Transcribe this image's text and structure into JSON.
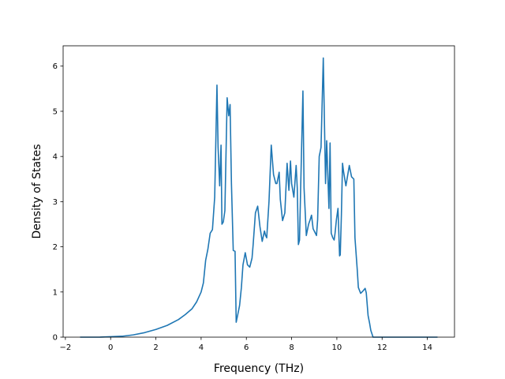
{
  "chart_data": {
    "type": "line",
    "title": "",
    "xlabel": "Frequency (THz)",
    "ylabel": "Density of States",
    "xlim": [
      -2.1,
      15.2
    ],
    "ylim": [
      0,
      6.45
    ],
    "x_ticks": [
      -2,
      0,
      2,
      4,
      6,
      8,
      10,
      12,
      14
    ],
    "x_tick_labels": [
      "−2",
      "0",
      "2",
      "4",
      "6",
      "8",
      "10",
      "12",
      "14"
    ],
    "y_ticks": [
      0,
      1,
      2,
      3,
      4,
      5,
      6
    ],
    "y_tick_labels": [
      "0",
      "1",
      "2",
      "3",
      "4",
      "5",
      "6"
    ],
    "grid": false,
    "legend": "none",
    "series": [
      {
        "color": "#1f77b4",
        "x": [
          -1.35,
          -0.5,
          0.0,
          0.5,
          1.0,
          1.5,
          2.0,
          2.5,
          3.0,
          3.3,
          3.6,
          3.8,
          4.0,
          4.1,
          4.2,
          4.3,
          4.4,
          4.5,
          4.6,
          4.7,
          4.75,
          4.82,
          4.88,
          4.92,
          4.98,
          5.05,
          5.15,
          5.22,
          5.28,
          5.34,
          5.42,
          5.5,
          5.55,
          5.62,
          5.7,
          5.78,
          5.85,
          5.95,
          6.05,
          6.15,
          6.25,
          6.3,
          6.4,
          6.5,
          6.6,
          6.7,
          6.8,
          6.85,
          6.9,
          7.0,
          7.1,
          7.2,
          7.3,
          7.35,
          7.45,
          7.5,
          7.6,
          7.7,
          7.8,
          7.88,
          7.95,
          8.0,
          8.1,
          8.2,
          8.25,
          8.3,
          8.35,
          8.4,
          8.5,
          8.55,
          8.65,
          8.75,
          8.82,
          8.88,
          8.95,
          9.05,
          9.1,
          9.15,
          9.22,
          9.3,
          9.4,
          9.5,
          9.55,
          9.65,
          9.7,
          9.75,
          9.82,
          9.88,
          9.92,
          9.98,
          10.05,
          10.12,
          10.15,
          10.2,
          10.25,
          10.3,
          10.4,
          10.55,
          10.65,
          10.75,
          10.8,
          10.9,
          10.95,
          11.05,
          11.15,
          11.25,
          11.3,
          11.38,
          11.45,
          11.5,
          11.6,
          11.65,
          11.7,
          11.75,
          11.82,
          11.88,
          11.92,
          12.0,
          12.1,
          12.2,
          12.25,
          12.3,
          12.4,
          12.5,
          12.55,
          12.6,
          12.7,
          12.8,
          13.0,
          13.15,
          13.3,
          13.5,
          14.0,
          14.45
        ],
        "y": [
          0,
          0,
          0.01,
          0.02,
          0.05,
          0.1,
          0.17,
          0.26,
          0.39,
          0.5,
          0.63,
          0.78,
          1.0,
          1.2,
          1.7,
          1.95,
          2.3,
          2.38,
          3.1,
          5.58,
          4.2,
          3.35,
          4.25,
          2.5,
          2.55,
          2.8,
          5.3,
          4.9,
          5.15,
          3.4,
          1.92,
          1.9,
          0.33,
          0.5,
          0.7,
          1.1,
          1.6,
          1.87,
          1.6,
          1.55,
          1.75,
          2.05,
          2.75,
          2.9,
          2.45,
          2.12,
          2.35,
          2.25,
          2.2,
          3.0,
          4.25,
          3.6,
          3.4,
          3.4,
          3.65,
          3.05,
          2.58,
          2.75,
          3.85,
          3.25,
          3.9,
          3.4,
          3.1,
          3.8,
          3.3,
          2.05,
          2.15,
          3.3,
          5.45,
          3.3,
          2.25,
          2.5,
          2.6,
          2.7,
          2.4,
          2.3,
          2.25,
          2.6,
          4.0,
          4.2,
          6.18,
          3.4,
          4.35,
          2.85,
          4.3,
          2.3,
          2.2,
          2.15,
          2.3,
          2.6,
          2.85,
          1.8,
          1.82,
          2.7,
          3.85,
          3.65,
          3.35,
          3.8,
          3.55,
          3.5,
          2.2,
          1.5,
          1.1,
          0.97,
          1.02,
          1.08,
          0.98,
          0.48,
          0.3,
          0.15,
          0,
          0,
          0,
          0,
          0,
          0,
          0,
          0,
          0,
          0,
          0,
          0,
          0,
          0,
          0,
          0,
          0,
          0,
          0,
          0,
          0,
          0,
          0,
          0
        ]
      }
    ]
  }
}
